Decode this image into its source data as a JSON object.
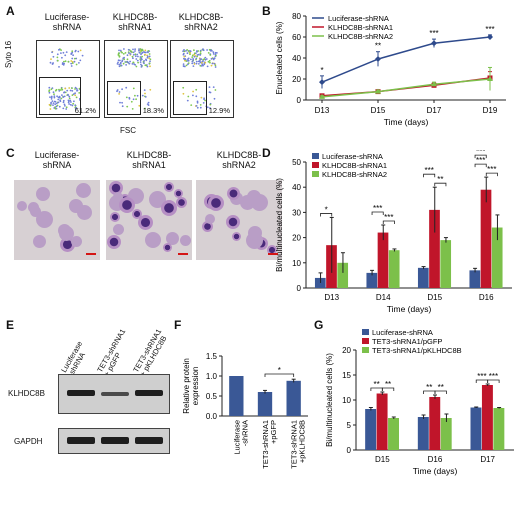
{
  "panels": {
    "A": "A",
    "B": "B",
    "C": "C",
    "D": "D",
    "E": "E",
    "F": "F",
    "G": "G"
  },
  "panelA": {
    "titles": [
      "Luciferase-\nshRNA",
      "KLHDC8B-\nshRNA1",
      "KLHDC8B-\nshRNA2"
    ],
    "percents": [
      "61.2%",
      "18.3%",
      "12.9%"
    ],
    "ylabel": "Syto 16",
    "xlabel": "FSC"
  },
  "panelC": {
    "titles": [
      "Luciferase-\nshRNA",
      "KLHDC8B-\nshRNA1",
      "KLHDC8B-\nshRNA2"
    ]
  },
  "panelE": {
    "lanes": [
      "Luciferase\n-shRNA",
      "TET3-shRNA1\n+ pGFP",
      "TET3-shRNA1\n+ pKLHDC8B"
    ],
    "rows": [
      "KLHDC8B",
      "GAPDH"
    ]
  },
  "colors": {
    "blue": "#2e4a8c",
    "red": "#c0152a",
    "green": "#7cc04a",
    "bar_blue": "#3a5896"
  },
  "chart_data": [
    {
      "id": "B",
      "type": "line",
      "x": [
        "D13",
        "D15",
        "D17",
        "D19"
      ],
      "xlabel": "Time (days)",
      "ylabel": "Enucleated cells (%)",
      "ylim": [
        0,
        80
      ],
      "yticks": [
        0,
        20,
        40,
        60,
        80
      ],
      "series": [
        {
          "name": "Luciferase-shRNA",
          "color": "#2e4a8c",
          "marker": "diamond",
          "values": [
            17,
            39,
            54,
            60
          ],
          "err": [
            6,
            7,
            4,
            2
          ]
        },
        {
          "name": "KLHDC8B-shRNA1",
          "color": "#c0152a",
          "marker": "square",
          "values": [
            4,
            8,
            14,
            21
          ],
          "err": [
            1,
            1.5,
            2,
            6
          ]
        },
        {
          "name": "KLHDC8B-shRNA2",
          "color": "#7cc04a",
          "marker": "triangle",
          "values": [
            3,
            8,
            15,
            20
          ],
          "err": [
            1,
            1.5,
            2,
            11
          ]
        }
      ],
      "annotations": [
        "*",
        "**",
        "***",
        "***"
      ],
      "legend": "top-left"
    },
    {
      "id": "D",
      "type": "bar",
      "categories": [
        "D13",
        "D14",
        "D15",
        "D16"
      ],
      "xlabel": "Time (days)",
      "ylabel": "Bi/multinucleated cells (%)",
      "ylim": [
        0,
        50
      ],
      "yticks": [
        0,
        10,
        20,
        30,
        40,
        50
      ],
      "series": [
        {
          "name": "Luciferase-shRNA",
          "color": "#3a5896",
          "values": [
            4,
            6,
            8,
            7
          ],
          "err": [
            2,
            1,
            0.5,
            0.8
          ]
        },
        {
          "name": "KLHDC8B-shRNA1",
          "color": "#c0152a",
          "values": [
            17,
            22,
            31,
            39
          ],
          "err": [
            11,
            3,
            9,
            5
          ]
        },
        {
          "name": "KLHDC8B-shRNA2",
          "color": "#7cc04a",
          "values": [
            10,
            15,
            19,
            24
          ],
          "err": [
            4,
            0.5,
            1,
            5
          ]
        }
      ],
      "annotations": [
        "*",
        "***",
        "***",
        "***",
        "**",
        "***",
        "***",
        "***",
        "***"
      ],
      "legend": "top-left"
    },
    {
      "id": "F",
      "type": "bar",
      "categories": [
        "Luciferase\n-shRNA",
        "TET3-shRNA1\n+pGFP",
        "TET3-shRNA1\n+pKLHDC8B"
      ],
      "ylabel": "Relative protein\nexpression",
      "ylim": [
        0,
        1.5
      ],
      "yticks": [
        0.0,
        0.5,
        1.0,
        1.5
      ],
      "values": [
        1.0,
        0.6,
        0.88
      ],
      "err": [
        0,
        0.04,
        0.04
      ],
      "color": "#3a5896",
      "annotations": [
        "*"
      ]
    },
    {
      "id": "G",
      "type": "bar",
      "categories": [
        "D15",
        "D16",
        "D17"
      ],
      "xlabel": "Time (days)",
      "ylabel": "Bi/multinucleated cells (%)",
      "ylim": [
        0,
        20
      ],
      "yticks": [
        0,
        5,
        10,
        15,
        20
      ],
      "series": [
        {
          "name": "Luciferase-shRNA",
          "color": "#3a5896",
          "values": [
            8.2,
            6.6,
            8.5
          ],
          "err": [
            0.3,
            0.4,
            0.1
          ]
        },
        {
          "name": "TET3-shRNA1/pGFP",
          "color": "#c0152a",
          "values": [
            11.3,
            10.6,
            13.0
          ],
          "err": [
            0.3,
            0.4,
            0.2
          ]
        },
        {
          "name": "TET3-shRNA1/pKLHDC8B",
          "color": "#7cc04a",
          "values": [
            6.4,
            6.4,
            8.4
          ],
          "err": [
            0.2,
            0.8,
            0.1
          ]
        }
      ],
      "annotations": [
        "**",
        "**",
        "**",
        "**",
        "***",
        "***"
      ],
      "legend": "top-left"
    }
  ]
}
